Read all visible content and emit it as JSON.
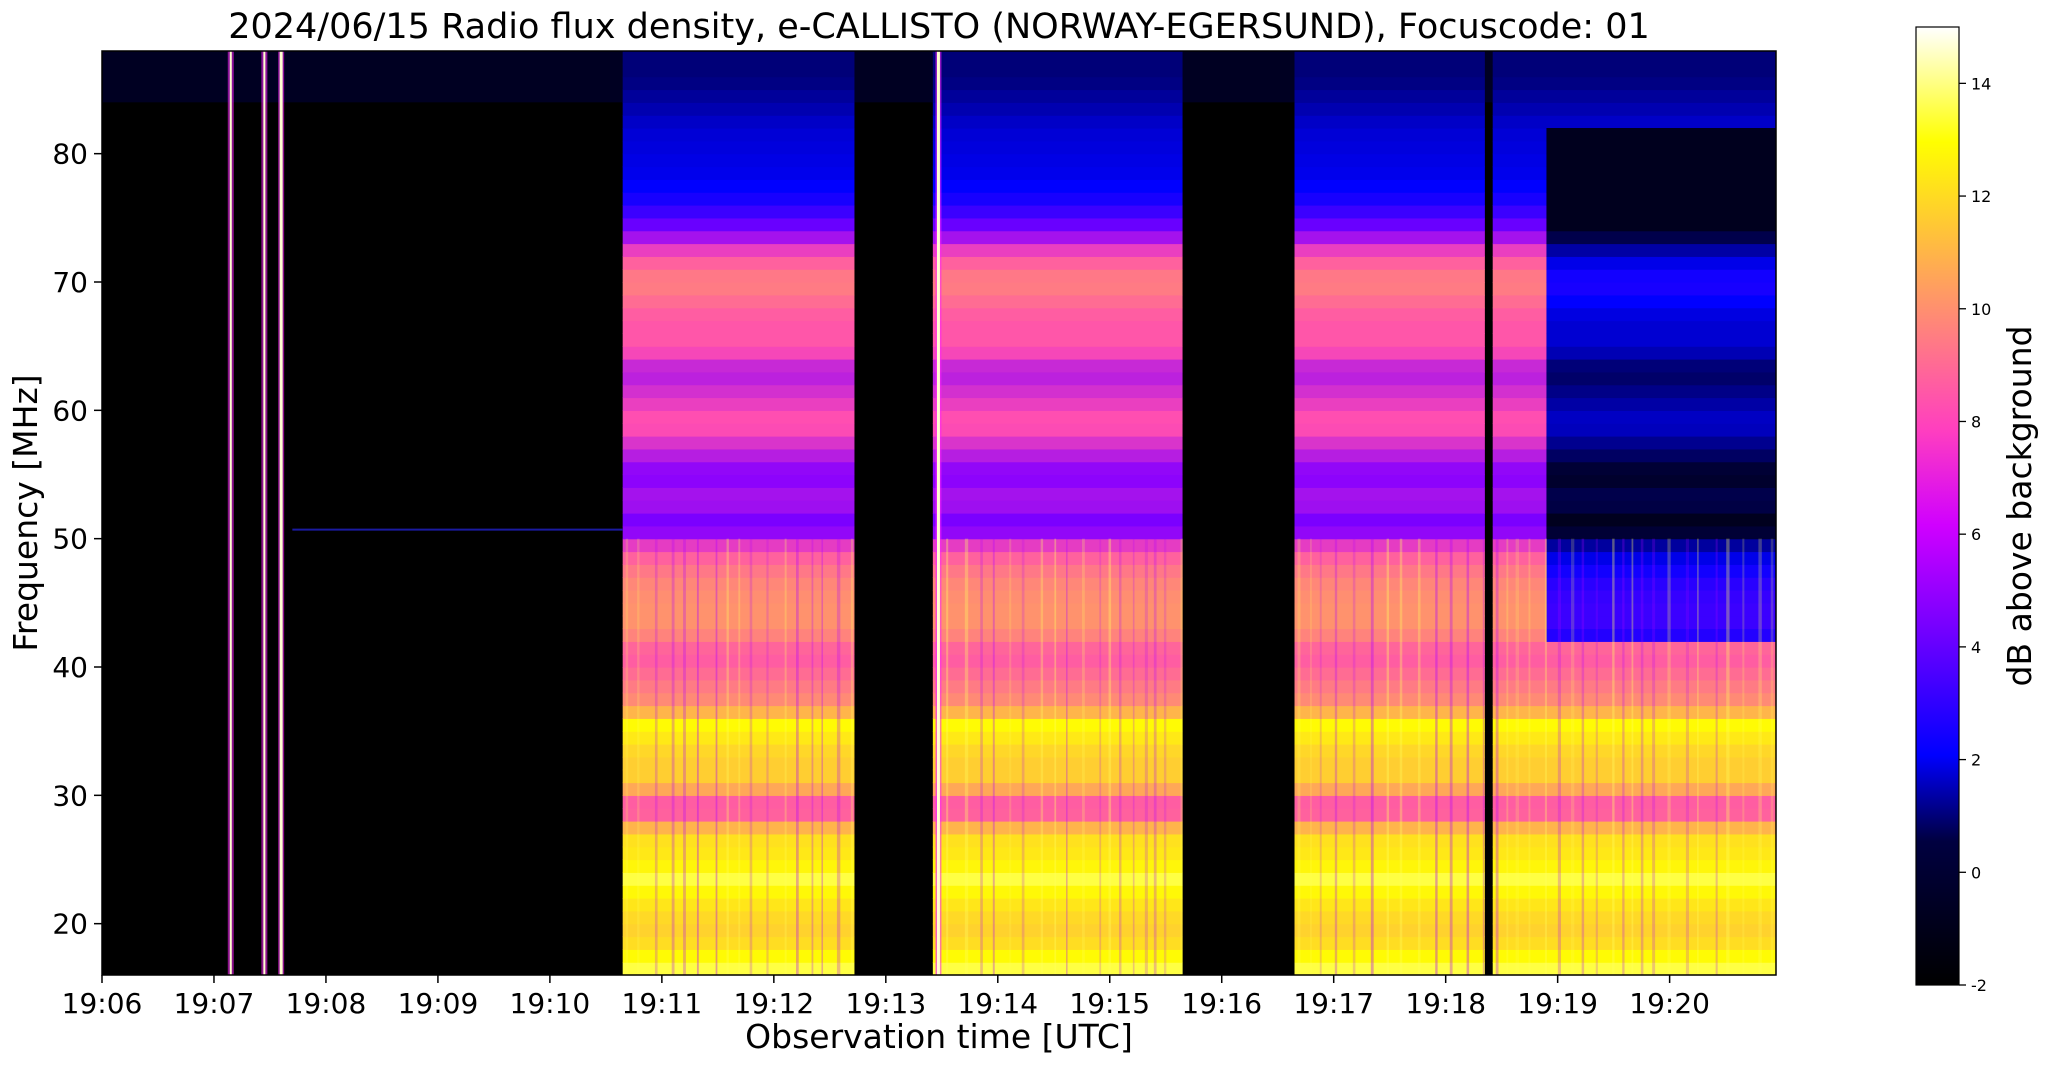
{
  "chart_data": {
    "type": "heatmap",
    "title": "2024/06/15  Radio flux density, e-CALLISTO (NORWAY-EGERSUND), Focuscode: 01",
    "xlabel": "Observation time [UTC]",
    "ylabel": "Frequency [MHz]",
    "x_ticks": [
      "19:06",
      "19:07",
      "19:08",
      "19:09",
      "19:10",
      "19:11",
      "19:12",
      "19:13",
      "19:14",
      "19:15",
      "19:16",
      "19:17",
      "19:18",
      "19:19",
      "19:20"
    ],
    "y_ticks": [
      "20",
      "30",
      "40",
      "50",
      "60",
      "70",
      "80"
    ],
    "xlim_minutes": [
      0,
      14.95
    ],
    "ylim": [
      16,
      88
    ],
    "colorbar": {
      "label": "dB above background",
      "ticks": [
        "-2",
        "0",
        "2",
        "4",
        "6",
        "8",
        "10",
        "12",
        "14"
      ],
      "range": [
        -2,
        15
      ],
      "colormap": "gnuplot2",
      "stops": [
        "#000000",
        "#0000ff",
        "#ff00ff",
        "#ffff00",
        "#ffffff"
      ]
    },
    "active_segments_minutes": [
      [
        4.65,
        6.72
      ],
      [
        7.42,
        9.65
      ],
      [
        10.65,
        12.35
      ],
      [
        12.42,
        14.95
      ]
    ],
    "bursts_minutes": [
      1.15,
      1.45,
      1.6,
      7.47
    ],
    "band_profile": [
      {
        "f": 17,
        "db": 14
      },
      {
        "f": 19,
        "db": 12
      },
      {
        "f": 21,
        "db": 12.5
      },
      {
        "f": 23.5,
        "db": 14
      },
      {
        "f": 25,
        "db": 13
      },
      {
        "f": 27,
        "db": 12.5
      },
      {
        "f": 29,
        "db": 7
      },
      {
        "f": 31,
        "db": 12
      },
      {
        "f": 33,
        "db": 12
      },
      {
        "f": 35.5,
        "db": 13.5
      },
      {
        "f": 37,
        "db": 10
      },
      {
        "f": 39,
        "db": 9
      },
      {
        "f": 41,
        "db": 8
      },
      {
        "f": 43,
        "db": 10
      },
      {
        "f": 45,
        "db": 10
      },
      {
        "f": 47,
        "db": 9.5
      },
      {
        "f": 49,
        "db": 8
      },
      {
        "f": 51,
        "db": 4.5
      },
      {
        "f": 53,
        "db": 6
      },
      {
        "f": 55,
        "db": 5
      },
      {
        "f": 57,
        "db": 6.5
      },
      {
        "f": 59,
        "db": 8
      },
      {
        "f": 61,
        "db": 7
      },
      {
        "f": 63,
        "db": 6
      },
      {
        "f": 65,
        "db": 8
      },
      {
        "f": 67,
        "db": 8
      },
      {
        "f": 70,
        "db": 9.5
      },
      {
        "f": 72,
        "db": 8
      },
      {
        "f": 74,
        "db": 5
      },
      {
        "f": 76,
        "db": 3
      },
      {
        "f": 78,
        "db": 2
      },
      {
        "f": 82,
        "db": 1.5
      },
      {
        "f": 86,
        "db": 0
      }
    ]
  }
}
